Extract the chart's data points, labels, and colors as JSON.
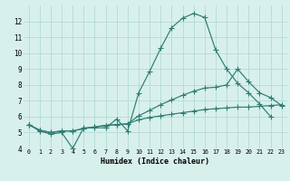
{
  "xlabel": "Humidex (Indice chaleur)",
  "bg_color": "#d8f0ec",
  "grid_color": "#b8ddd8",
  "line_color": "#2e7d72",
  "xlim": [
    -0.5,
    23.5
  ],
  "ylim": [
    4,
    13
  ],
  "xticks": [
    0,
    1,
    2,
    3,
    4,
    5,
    6,
    7,
    8,
    9,
    10,
    11,
    12,
    13,
    14,
    15,
    16,
    17,
    18,
    19,
    20,
    21,
    22,
    23
  ],
  "yticks": [
    4,
    5,
    6,
    7,
    8,
    9,
    10,
    11,
    12
  ],
  "series1_x": [
    0,
    1,
    2,
    3,
    4,
    5,
    6,
    7,
    8,
    9,
    10,
    11,
    12,
    13,
    14,
    15,
    16,
    17,
    18,
    19,
    20,
    21,
    22
  ],
  "series1_y": [
    5.5,
    5.1,
    4.9,
    5.0,
    4.0,
    5.3,
    5.3,
    5.3,
    5.85,
    5.1,
    7.5,
    8.85,
    10.3,
    11.6,
    12.2,
    12.5,
    12.25,
    10.2,
    9.0,
    8.1,
    7.5,
    6.8,
    6.0
  ],
  "series2_x": [
    0,
    1,
    2,
    3,
    4,
    5,
    6,
    7,
    8,
    9,
    10,
    11,
    12,
    13,
    14,
    15,
    16,
    17,
    18,
    19,
    20,
    21,
    22,
    23
  ],
  "series2_y": [
    5.5,
    5.15,
    5.0,
    5.1,
    5.1,
    5.25,
    5.35,
    5.45,
    5.5,
    5.55,
    6.05,
    6.4,
    6.75,
    7.05,
    7.35,
    7.6,
    7.8,
    7.85,
    8.0,
    9.0,
    8.2,
    7.5,
    7.2,
    6.7
  ],
  "series3_x": [
    0,
    1,
    2,
    3,
    4,
    5,
    6,
    7,
    8,
    9,
    10,
    11,
    12,
    13,
    14,
    15,
    16,
    17,
    18,
    19,
    20,
    21,
    22,
    23
  ],
  "series3_y": [
    5.5,
    5.15,
    5.0,
    5.1,
    5.1,
    5.25,
    5.35,
    5.45,
    5.5,
    5.55,
    5.8,
    5.95,
    6.05,
    6.15,
    6.25,
    6.35,
    6.45,
    6.5,
    6.55,
    6.6,
    6.6,
    6.65,
    6.7,
    6.75
  ]
}
